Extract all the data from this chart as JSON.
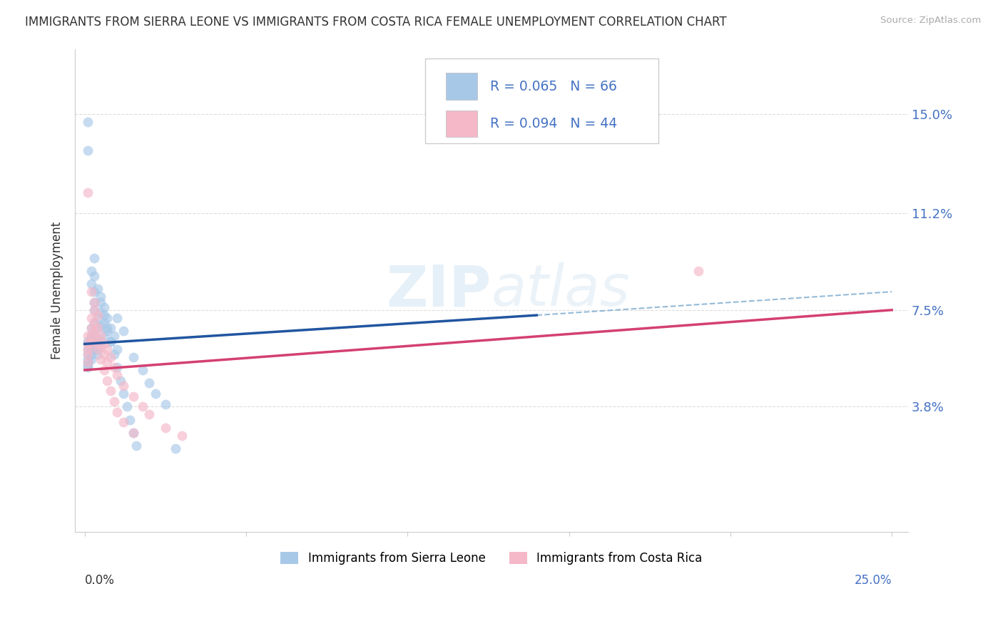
{
  "title": "IMMIGRANTS FROM SIERRA LEONE VS IMMIGRANTS FROM COSTA RICA FEMALE UNEMPLOYMENT CORRELATION CHART",
  "source": "Source: ZipAtlas.com",
  "ylabel": "Female Unemployment",
  "yticks": [
    3.8,
    7.5,
    11.2,
    15.0
  ],
  "xlim": [
    0.0,
    0.25
  ],
  "ylim": [
    0.0,
    0.165
  ],
  "watermark": "ZIPatlas",
  "series1_label": "Immigrants from Sierra Leone",
  "series2_label": "Immigrants from Costa Rica",
  "color1": "#a8c8e8",
  "color2": "#f4b8c8",
  "regression1_color": "#2155a0",
  "regression2_color": "#d44070",
  "regression1_dash_color": "#7aaad0",
  "regression1_x0": 0.0,
  "regression1_y0": 0.062,
  "regression1_x1": 0.14,
  "regression1_y1": 0.073,
  "regression1_dash_x0": 0.14,
  "regression1_dash_y0": 0.073,
  "regression1_dash_x1": 0.25,
  "regression1_dash_y1": 0.082,
  "regression2_x0": 0.0,
  "regression2_y0": 0.052,
  "regression2_x1": 0.25,
  "regression2_y1": 0.075,
  "sierra_leone_x": [
    0.001,
    0.001,
    0.001,
    0.001,
    0.001,
    0.001,
    0.001,
    0.001,
    0.002,
    0.002,
    0.002,
    0.002,
    0.002,
    0.002,
    0.002,
    0.003,
    0.003,
    0.003,
    0.003,
    0.003,
    0.003,
    0.004,
    0.004,
    0.004,
    0.004,
    0.004,
    0.005,
    0.005,
    0.005,
    0.005,
    0.006,
    0.006,
    0.006,
    0.007,
    0.007,
    0.008,
    0.008,
    0.009,
    0.01,
    0.01,
    0.012,
    0.015,
    0.018,
    0.02,
    0.022,
    0.025,
    0.028,
    0.001,
    0.001,
    0.002,
    0.002,
    0.003,
    0.003,
    0.004,
    0.005,
    0.006,
    0.007,
    0.008,
    0.009,
    0.01,
    0.011,
    0.012,
    0.013,
    0.014,
    0.015,
    0.016
  ],
  "sierra_leone_y": [
    0.062,
    0.063,
    0.06,
    0.058,
    0.056,
    0.055,
    0.054,
    0.053,
    0.065,
    0.064,
    0.062,
    0.06,
    0.058,
    0.056,
    0.068,
    0.082,
    0.078,
    0.075,
    0.07,
    0.065,
    0.06,
    0.072,
    0.068,
    0.064,
    0.06,
    0.058,
    0.08,
    0.074,
    0.069,
    0.063,
    0.076,
    0.07,
    0.065,
    0.072,
    0.067,
    0.068,
    0.063,
    0.065,
    0.072,
    0.06,
    0.067,
    0.057,
    0.052,
    0.047,
    0.043,
    0.039,
    0.022,
    0.147,
    0.136,
    0.09,
    0.085,
    0.095,
    0.088,
    0.083,
    0.078,
    0.073,
    0.068,
    0.063,
    0.058,
    0.053,
    0.048,
    0.043,
    0.038,
    0.033,
    0.028,
    0.023
  ],
  "costa_rica_x": [
    0.001,
    0.001,
    0.001,
    0.001,
    0.001,
    0.002,
    0.002,
    0.002,
    0.002,
    0.003,
    0.003,
    0.003,
    0.003,
    0.004,
    0.004,
    0.004,
    0.005,
    0.005,
    0.006,
    0.006,
    0.007,
    0.007,
    0.008,
    0.009,
    0.01,
    0.012,
    0.015,
    0.018,
    0.02,
    0.025,
    0.03,
    0.001,
    0.002,
    0.003,
    0.004,
    0.005,
    0.006,
    0.007,
    0.008,
    0.009,
    0.01,
    0.012,
    0.015,
    0.19
  ],
  "costa_rica_y": [
    0.065,
    0.062,
    0.06,
    0.058,
    0.055,
    0.072,
    0.068,
    0.065,
    0.062,
    0.075,
    0.07,
    0.067,
    0.063,
    0.068,
    0.064,
    0.06,
    0.065,
    0.061,
    0.062,
    0.058,
    0.06,
    0.055,
    0.057,
    0.053,
    0.05,
    0.046,
    0.042,
    0.038,
    0.035,
    0.03,
    0.027,
    0.12,
    0.082,
    0.078,
    0.073,
    0.056,
    0.052,
    0.048,
    0.044,
    0.04,
    0.036,
    0.032,
    0.028,
    0.09
  ]
}
